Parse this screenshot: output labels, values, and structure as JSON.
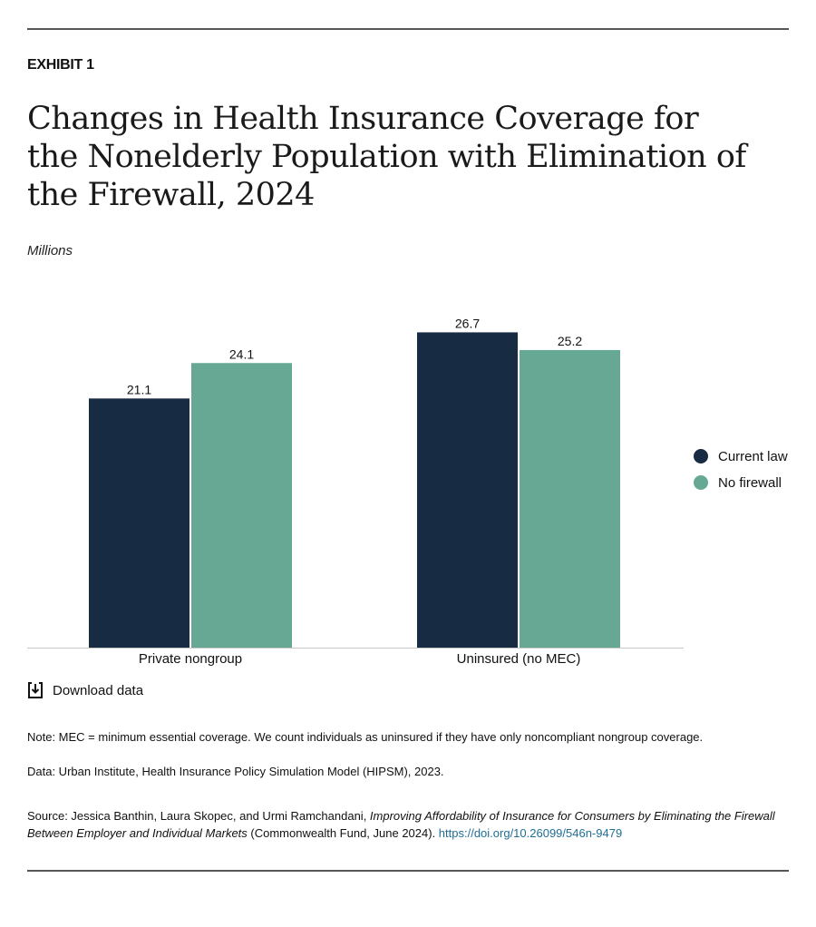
{
  "exhibit_label": "EXHIBIT 1",
  "title": "Changes in Health Insurance Coverage for the Nonelderly Population with Elimination of the Firewall, 2024",
  "units": "Millions",
  "colors": {
    "current_law": "#172b42",
    "no_firewall": "#66a893",
    "axis": "#c8c8c8"
  },
  "chart_data": {
    "type": "bar",
    "title": "Changes in Health Insurance Coverage for the Nonelderly Population with Elimination of the Firewall, 2024",
    "xlabel": "",
    "ylabel": "Millions",
    "categories": [
      "Private nongroup",
      "Uninsured (no MEC)"
    ],
    "series": [
      {
        "name": "Current law",
        "values": [
          21.1,
          26.7
        ],
        "labels": [
          "21.1",
          "26.7"
        ]
      },
      {
        "name": "No firewall",
        "values": [
          24.1,
          25.2
        ],
        "labels": [
          "24.1",
          "25.2"
        ]
      }
    ],
    "ylim": [
      0,
      27.5
    ],
    "grid": false,
    "legend": "right"
  },
  "legend": [
    {
      "label": "Current law"
    },
    {
      "label": "No firewall"
    }
  ],
  "download_label": "Download data",
  "note": "Note: MEC = minimum essential coverage. We count individuals as uninsured if they have only noncompliant nongroup coverage.",
  "data_source": "Data: Urban Institute, Health Insurance Policy Simulation Model (HIPSM), 2023.",
  "source": {
    "prefix": "Source: Jessica Banthin, Laura Skopec, and Urmi Ramchandani, ",
    "italic": "Improving Affordability of Insurance for Consumers by Eliminating the Firewall Between Employer and Individual Markets",
    "suffix": " (Commonwealth Fund, June 2024). ",
    "link": "https://doi.org/10.26099/546n-9479"
  }
}
